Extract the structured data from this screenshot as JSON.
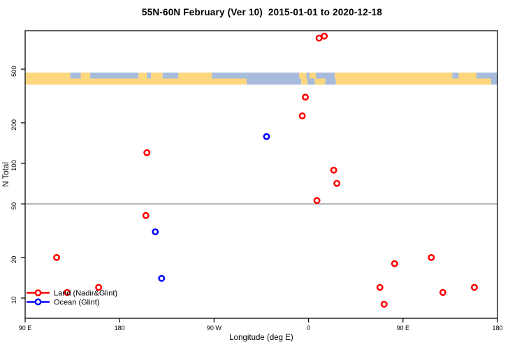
{
  "title": "55N-60N February (Ver 10)  2015-01-01 to 2020-12-18",
  "colors": {
    "land_series": "#FF0000",
    "ocean_series": "#0000FF",
    "map_land": "#FCD77E",
    "map_ocean": "#A7BBDC",
    "threshold_line": "#7F7F7F",
    "frame": "#1a1a1a"
  },
  "legend": {
    "items": [
      {
        "label": "Land (Nadir&Glint)",
        "color": "#FF0000"
      },
      {
        "label": "Ocean (Glint)",
        "color": "#0000FF"
      }
    ]
  },
  "chart_data": {
    "type": "scatter",
    "title": "55N-60N February (Ver 10)  2015-01-01 to 2020-12-18",
    "xlabel": "Longitude (deg E)",
    "ylabel": "N Total",
    "x_axis": {
      "min": -270,
      "max": 180,
      "ticks": [
        {
          "value": -270,
          "label": "90 E"
        },
        {
          "value": -180,
          "label": "180"
        },
        {
          "value": -90,
          "label": "90 W"
        },
        {
          "value": 0,
          "label": "0"
        },
        {
          "value": 90,
          "label": "90 E"
        },
        {
          "value": 180,
          "label": "180"
        }
      ]
    },
    "y_axis": {
      "scale": "log",
      "min": 7,
      "max": 940,
      "ticks": [
        10,
        20,
        50,
        100,
        200,
        500
      ]
    },
    "threshold_line": 50,
    "grid": false,
    "legend_position": "bottom-left",
    "series": [
      {
        "name": "Land (Nadir&Glint)",
        "color": "#FF0000",
        "points": [
          {
            "lon": 10,
            "n": 850
          },
          {
            "lon": 15,
            "n": 880
          },
          {
            "lon": -3,
            "n": 310
          },
          {
            "lon": -6,
            "n": 225
          },
          {
            "lon": -154,
            "n": 120
          },
          {
            "lon": 24,
            "n": 89
          },
          {
            "lon": 27,
            "n": 71
          },
          {
            "lon": 8,
            "n": 53
          },
          {
            "lon": -155,
            "n": 41
          },
          {
            "lon": -240,
            "n": 20
          },
          {
            "lon": -230,
            "n": 11
          },
          {
            "lon": -200,
            "n": 12
          },
          {
            "lon": 82,
            "n": 18
          },
          {
            "lon": 117,
            "n": 20
          },
          {
            "lon": 68,
            "n": 12
          },
          {
            "lon": 72,
            "n": 9
          },
          {
            "lon": 128,
            "n": 11
          },
          {
            "lon": 158,
            "n": 12
          }
        ]
      },
      {
        "name": "Ocean (Glint)",
        "color": "#0000FF",
        "points": [
          {
            "lon": -40,
            "n": 158
          },
          {
            "lon": -146,
            "n": 31
          },
          {
            "lon": -140,
            "n": 14
          }
        ]
      }
    ],
    "map_band": {
      "n_range": [
        385,
        472
      ],
      "rows": [
        [
          [
            -270,
            -227,
            "land"
          ],
          [
            -227,
            -217,
            "ocean"
          ],
          [
            -217,
            -208,
            "land"
          ],
          [
            -208,
            -162,
            "ocean"
          ],
          [
            -162,
            -154,
            "land"
          ],
          [
            -154,
            -150,
            "ocean"
          ],
          [
            -150,
            -139,
            "land"
          ],
          [
            -139,
            -124,
            "ocean"
          ],
          [
            -124,
            -92,
            "land"
          ],
          [
            -92,
            -9,
            "ocean"
          ],
          [
            -9,
            -2,
            "land"
          ],
          [
            -2,
            1,
            "ocean"
          ],
          [
            1,
            7,
            "land"
          ],
          [
            7,
            25,
            "ocean"
          ],
          [
            25,
            137,
            "land"
          ],
          [
            137,
            143,
            "ocean"
          ],
          [
            143,
            160,
            "land"
          ],
          [
            160,
            180,
            "ocean"
          ]
        ],
        [
          [
            -270,
            -59,
            "land"
          ],
          [
            -59,
            -7,
            "ocean"
          ],
          [
            -7,
            -1,
            "land"
          ],
          [
            -1,
            6,
            "ocean"
          ],
          [
            6,
            16,
            "land"
          ],
          [
            16,
            26,
            "ocean"
          ],
          [
            26,
            174,
            "land"
          ],
          [
            174,
            180,
            "ocean"
          ]
        ]
      ]
    }
  }
}
